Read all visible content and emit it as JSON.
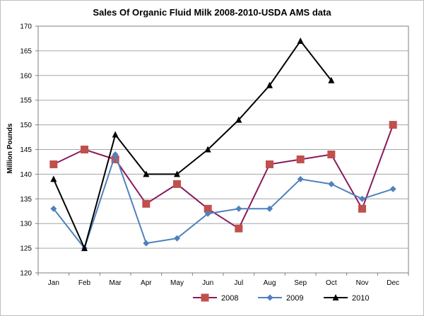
{
  "chart_data": {
    "type": "line",
    "title": "Sales Of Organic Fluid Milk 2008-2010-USDA AMS data",
    "xlabel": "",
    "ylabel": "Million Pounds",
    "categories": [
      "Jan",
      "Feb",
      "Mar",
      "Apr",
      "May",
      "Jun",
      "Jul",
      "Aug",
      "Sep",
      "Oct",
      "Nov",
      "Dec"
    ],
    "ylim": [
      120,
      170
    ],
    "yticks": [
      120,
      125,
      130,
      135,
      140,
      145,
      150,
      155,
      160,
      165,
      170
    ],
    "grid": true,
    "legend_position": "bottom",
    "series": [
      {
        "name": "2008",
        "color": "#8B1A5C",
        "marker": "square",
        "marker_color": "#C0504D",
        "values": [
          142,
          145,
          143,
          134,
          138,
          133,
          129,
          142,
          143,
          144,
          133,
          150
        ]
      },
      {
        "name": "2009",
        "color": "#4F81BD",
        "marker": "diamond",
        "marker_color": "#4F81BD",
        "values": [
          133,
          125,
          144,
          126,
          127,
          132,
          133,
          133,
          139,
          138,
          135,
          137
        ]
      },
      {
        "name": "2010",
        "color": "#000000",
        "marker": "triangle",
        "marker_color": "#000000",
        "values": [
          139,
          125,
          148,
          140,
          140,
          145,
          151,
          158,
          167,
          159,
          null,
          null
        ]
      }
    ]
  }
}
